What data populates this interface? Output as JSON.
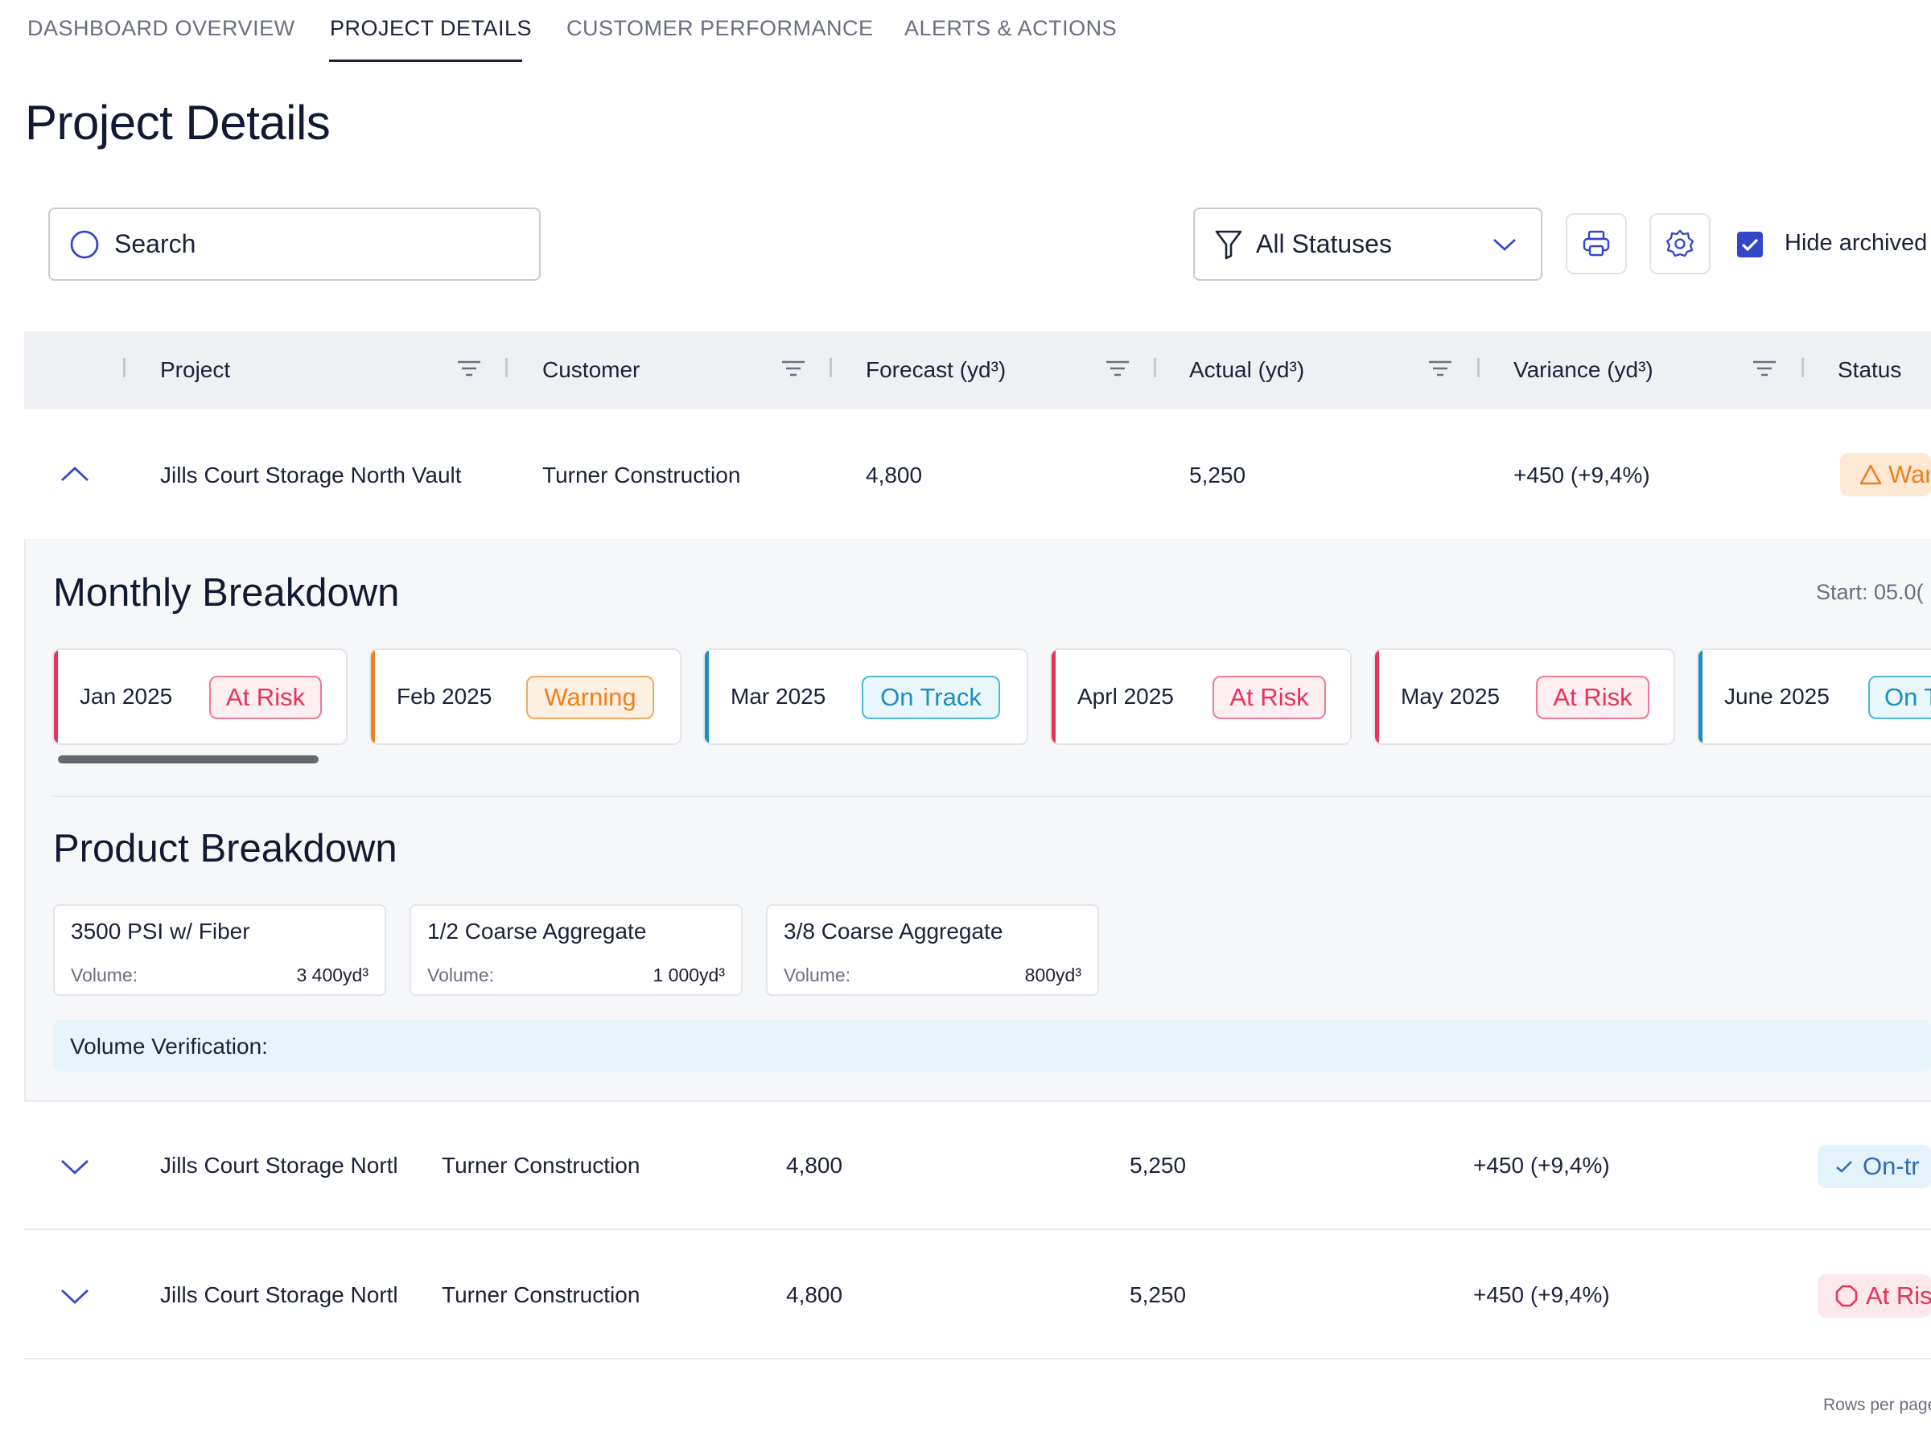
{
  "tabs": [
    {
      "label": "DASHBOARD OVERVIEW",
      "active": false
    },
    {
      "label": "PROJECT DETAILS",
      "active": true
    },
    {
      "label": "CUSTOMER PERFORMANCE",
      "active": false
    },
    {
      "label": "ALERTS & ACTIONS",
      "active": false
    }
  ],
  "page_title": "Project Details",
  "toolbar": {
    "search_placeholder": "Search",
    "status_filter_value": "All Statuses",
    "hide_archived_label": "Hide archived",
    "hide_archived_checked": true
  },
  "table": {
    "columns": [
      "Project",
      "Customer",
      "Forecast (yd³)",
      "Actual (yd³)",
      "Variance (yd³)",
      "Status"
    ],
    "rows": [
      {
        "project": "Jills Court Storage North Vault",
        "customer": "Turner Construction",
        "forecast": "4,800",
        "actual": "5,250",
        "variance": "+450 (+9,4%)",
        "status": "Warning",
        "status_shown": "War",
        "expanded": true
      },
      {
        "project": "Jills Court Storage North Vault",
        "project_shown": "Jills Court Storage Nortl",
        "customer": "Turner Construction",
        "forecast": "4,800",
        "actual": "5,250",
        "variance": "+450 (+9,4%)",
        "status": "On-track",
        "status_shown": "On-tr",
        "expanded": false
      },
      {
        "project": "Jills Court Storage North Vault",
        "project_shown": "Jills Court Storage Nortl",
        "customer": "Turner Construction",
        "forecast": "4,800",
        "actual": "5,250",
        "variance": "+450 (+9,4%)",
        "status": "At Risk",
        "status_shown": "At Ris",
        "expanded": false
      }
    ]
  },
  "expanded": {
    "monthly_title": "Monthly Breakdown",
    "start_label": "Start: 05.0(",
    "months": [
      {
        "name": "Jan 2025",
        "status": "At Risk"
      },
      {
        "name": "Feb 2025",
        "status": "Warning"
      },
      {
        "name": "Mar 2025",
        "status": "On Track"
      },
      {
        "name": "Aprl 2025",
        "status": "At Risk"
      },
      {
        "name": "May 2025",
        "status": "At Risk"
      },
      {
        "name": "June 2025",
        "status": "On T"
      }
    ],
    "product_title": "Product Breakdown",
    "products": [
      {
        "name": "3500 PSI w/ Fiber",
        "volume_label": "Volume:",
        "volume": "3 400yd³"
      },
      {
        "name": "1/2 Coarse Aggregate",
        "volume_label": "Volume:",
        "volume": "1 000yd³"
      },
      {
        "name": "3/8 Coarse Aggregate",
        "volume_label": "Volume:",
        "volume": "800yd³"
      }
    ],
    "volume_verification_label": "Volume Verification:"
  },
  "footer": {
    "rows_per_page": "Rows per page"
  },
  "colors": {
    "at_risk": "#e8325a",
    "warning": "#f07f1a",
    "on_track": "#1c8fbd",
    "accent": "#3346c8"
  },
  "icons": [
    "search-icon",
    "chevron-down-icon",
    "funnel-icon",
    "printer-icon",
    "gear-icon",
    "checkbox-checked-icon",
    "column-filter-icon",
    "chevron-up-icon",
    "warning-triangle-icon",
    "check-icon",
    "alert-octagon-icon"
  ]
}
